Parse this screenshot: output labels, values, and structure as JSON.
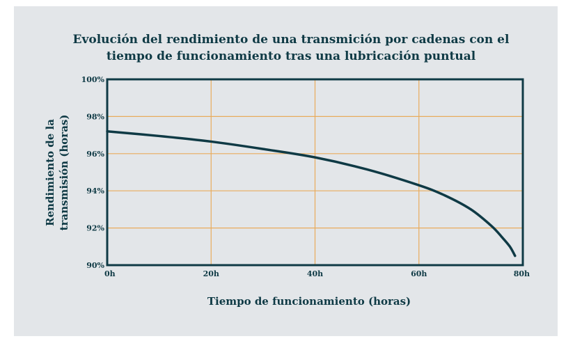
{
  "chart_data": {
    "type": "line",
    "title": "Evolución del rendimiento de una transmición por cadenas con el tiempo de funcionamiento tras una lubricación puntual",
    "title_lines": [
      "Evolución del rendimiento de una transmición por cadenas con el",
      "tiempo de funcionamiento tras una lubricación puntual"
    ],
    "xlabel": "Tiempo de funcionamiento (horas)",
    "ylabel_lines": [
      "Rendimiento de la",
      "transmisión (horas)"
    ],
    "xlim": [
      0,
      80
    ],
    "ylim": [
      90,
      100
    ],
    "x_ticks": [
      0,
      20,
      40,
      60,
      80
    ],
    "x_tick_labels": [
      "0h",
      "20h",
      "40h",
      "60h",
      "80h"
    ],
    "y_ticks": [
      90,
      92,
      94,
      96,
      98,
      100
    ],
    "y_tick_labels": [
      "90%",
      "92%",
      "94%",
      "96%",
      "98%",
      "100%"
    ],
    "grid": true,
    "legend": "none",
    "series": [
      {
        "x": [
          0,
          10,
          20,
          30,
          40,
          50,
          60,
          65,
          70,
          74,
          76,
          77.5,
          78.5
        ],
        "y": [
          97.2,
          96.95,
          96.65,
          96.25,
          95.8,
          95.15,
          94.3,
          93.75,
          93.0,
          92.1,
          91.5,
          91.0,
          90.5
        ]
      }
    ],
    "colors": {
      "line": "#0f3a45",
      "frame": "#0f3a45",
      "grid": "#e9ab5c",
      "background": "#e3e6e9"
    }
  }
}
